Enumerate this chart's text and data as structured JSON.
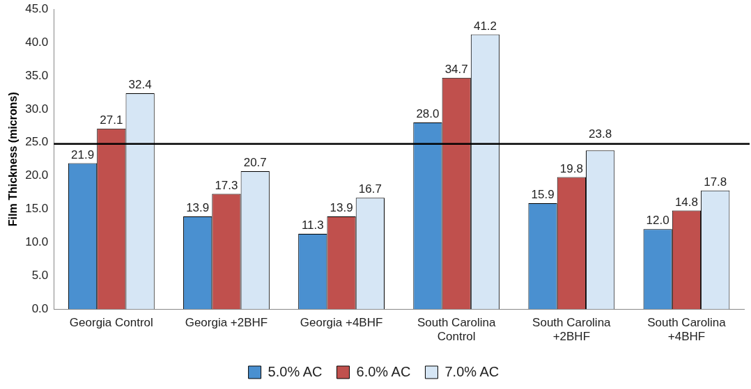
{
  "chart_data": {
    "type": "bar",
    "ylabel": "Film Thickness (microns)",
    "categories": [
      "Georgia Control",
      "Georgia +2BHF",
      "Georgia +4BHF",
      "South Carolina Control",
      "South Carolina +2BHF",
      "South Carolina +4BHF"
    ],
    "series": [
      {
        "name": "5.0% AC",
        "color": "#4a90d0",
        "values": [
          21.9,
          13.9,
          11.3,
          28.0,
          15.9,
          12.0
        ],
        "value_labels": [
          "21.9",
          "13.9",
          "11.3",
          "28.0",
          "15.9",
          "12.0"
        ]
      },
      {
        "name": "6.0% AC",
        "color": "#c0504d",
        "values": [
          27.1,
          17.3,
          13.9,
          34.7,
          19.8,
          14.8
        ],
        "value_labels": [
          "27.1",
          "17.3",
          "13.9",
          "34.7",
          "19.8",
          "14.8"
        ]
      },
      {
        "name": "7.0% AC",
        "color": "#d6e6f5",
        "values": [
          32.4,
          20.7,
          16.7,
          41.2,
          23.8,
          17.8
        ],
        "value_labels": [
          "32.4",
          "20.7",
          "16.7",
          "41.2",
          "23.8",
          "17.8"
        ]
      }
    ],
    "ylim": [
      0,
      45
    ],
    "yticks": [
      {
        "value": 0,
        "label": "0.0"
      },
      {
        "value": 5,
        "label": "5.0"
      },
      {
        "value": 10,
        "label": "10.0"
      },
      {
        "value": 15,
        "label": "15.0"
      },
      {
        "value": 20,
        "label": "20.0"
      },
      {
        "value": 25,
        "label": "25.0"
      },
      {
        "value": 30,
        "label": "30.0"
      },
      {
        "value": 35,
        "label": "35.0"
      },
      {
        "value": 40,
        "label": "40.0"
      },
      {
        "value": 45,
        "label": "45.0"
      }
    ],
    "ref_lines": [
      {
        "axis": "y",
        "value": 24.8,
        "color": "#000000"
      }
    ],
    "grid": false,
    "legend": "bottom"
  }
}
